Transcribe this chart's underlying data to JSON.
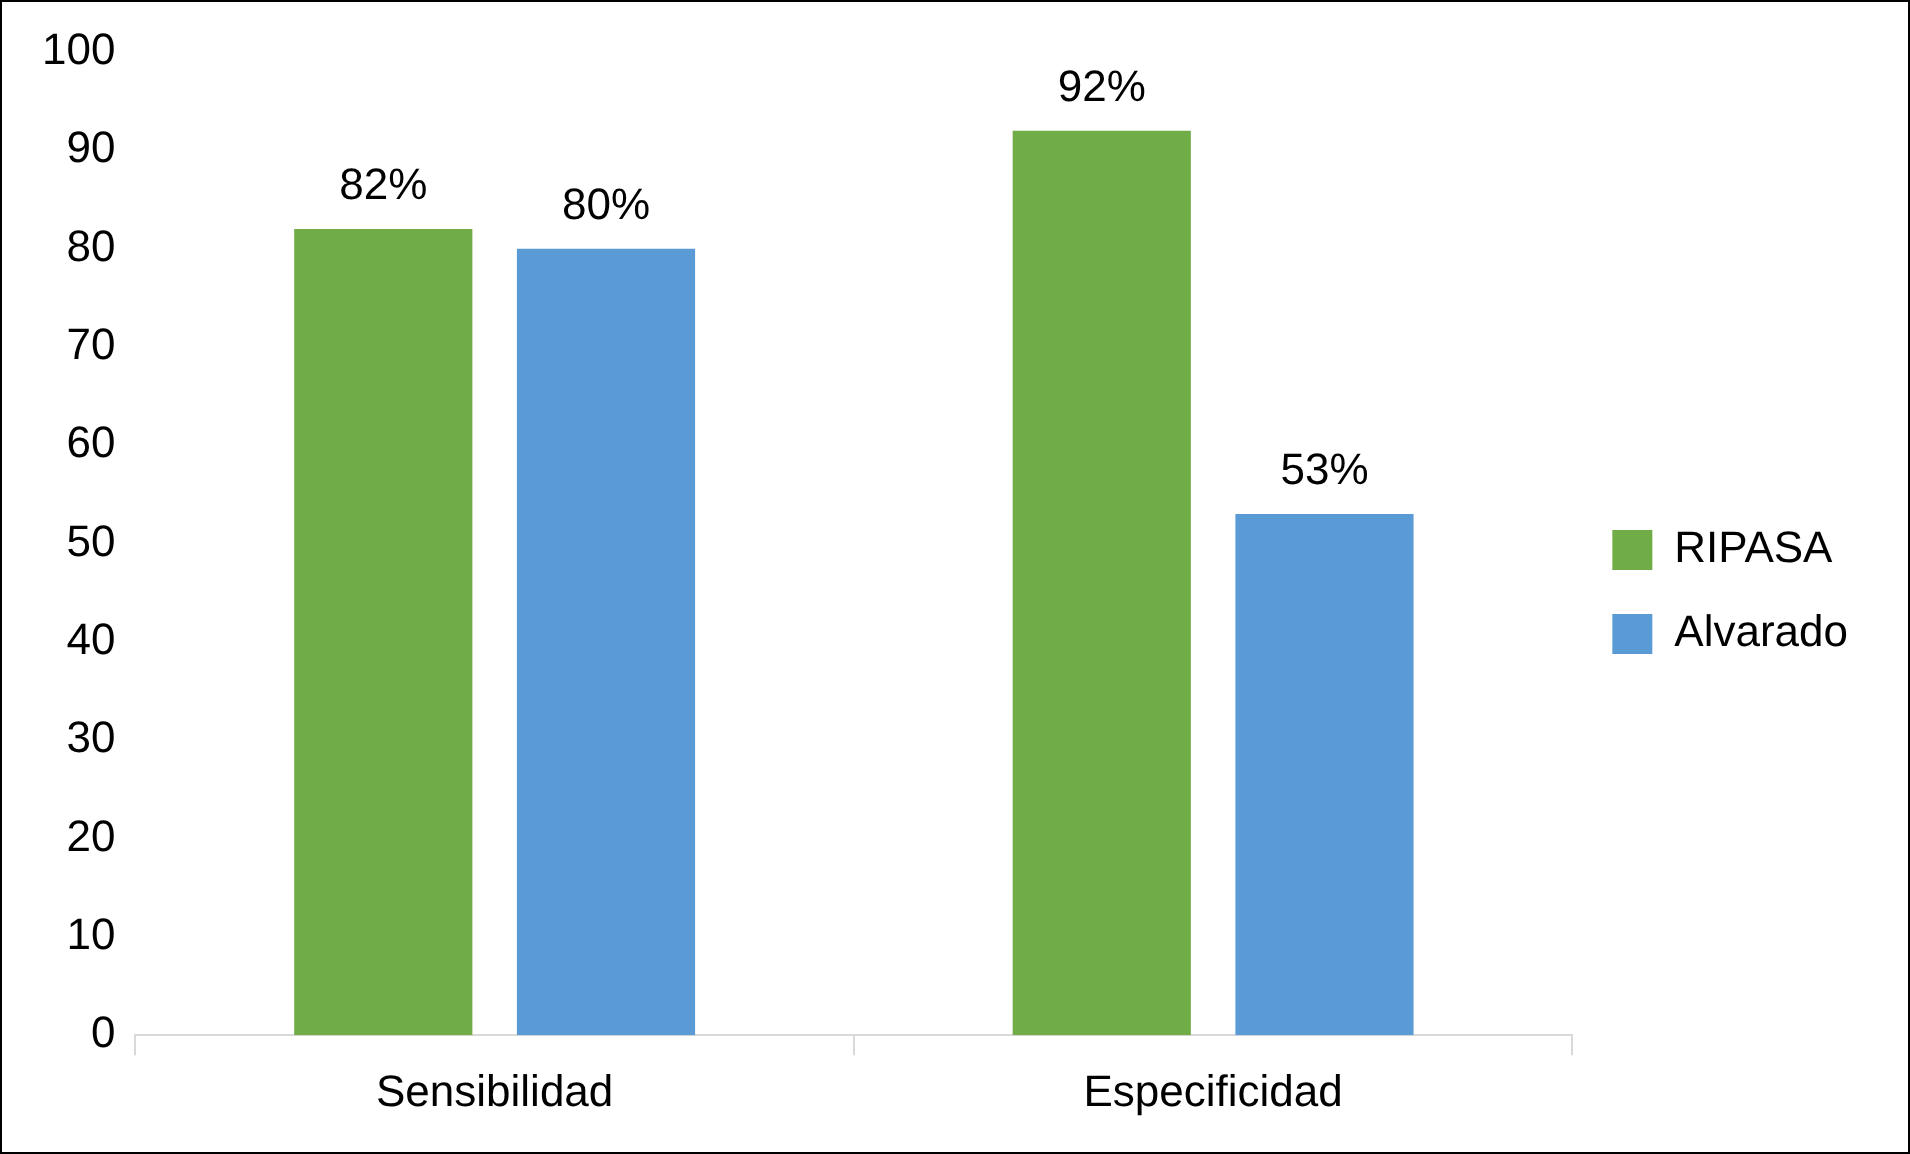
{
  "chart_data": {
    "type": "bar",
    "categories": [
      "Sensibilidad",
      "Especificidad"
    ],
    "series": [
      {
        "name": "RIPASA",
        "color": "#70ad47",
        "values": [
          82,
          92
        ],
        "value_labels": [
          "82%",
          "92%"
        ]
      },
      {
        "name": "Alvarado",
        "color": "#5b9bd5",
        "values": [
          80,
          53
        ],
        "value_labels": [
          "80%",
          "53%"
        ]
      }
    ],
    "ylim": [
      0,
      100
    ],
    "yticks": [
      0,
      10,
      20,
      30,
      40,
      50,
      60,
      70,
      80,
      90,
      100
    ],
    "grid": false,
    "legend": "right"
  }
}
